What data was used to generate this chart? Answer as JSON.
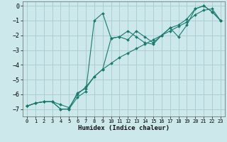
{
  "bg_color": "#cce8ea",
  "grid_color": "#aacfd2",
  "line_color": "#1a7a6e",
  "xlabel": "Humidex (Indice chaleur)",
  "xlim": [
    -0.5,
    23.5
  ],
  "ylim": [
    -7.5,
    0.3
  ],
  "xticks": [
    0,
    1,
    2,
    3,
    4,
    5,
    6,
    7,
    8,
    9,
    10,
    11,
    12,
    13,
    14,
    15,
    16,
    17,
    18,
    19,
    20,
    21,
    22,
    23
  ],
  "yticks": [
    0,
    -1,
    -2,
    -3,
    -4,
    -5,
    -6,
    -7
  ],
  "series": [
    {
      "x": [
        0,
        1,
        2,
        3,
        4,
        5,
        6,
        7,
        8,
        9,
        10,
        11,
        12,
        13,
        14,
        15,
        16,
        17,
        18,
        19,
        20,
        21,
        22,
        23
      ],
      "y": [
        -6.8,
        -6.6,
        -6.5,
        -6.5,
        -6.7,
        -6.9,
        -6.0,
        -5.5,
        -4.8,
        -4.3,
        -3.9,
        -3.5,
        -3.2,
        -2.9,
        -2.6,
        -2.3,
        -2.0,
        -1.7,
        -1.4,
        -1.1,
        -0.6,
        -0.3,
        -0.2,
        -1.0
      ]
    },
    {
      "x": [
        0,
        1,
        2,
        3,
        4,
        5,
        6,
        7,
        8,
        9,
        10,
        11,
        12,
        13,
        14,
        15,
        16,
        17,
        18,
        19,
        20,
        21,
        22,
        23
      ],
      "y": [
        -6.8,
        -6.6,
        -6.5,
        -6.5,
        -7.0,
        -7.0,
        -6.2,
        -5.8,
        -1.0,
        -0.5,
        -2.2,
        -2.1,
        -2.3,
        -1.7,
        -2.1,
        -2.5,
        -2.0,
        -1.5,
        -1.3,
        -0.9,
        -0.2,
        0.0,
        -0.4,
        -1.0
      ]
    },
    {
      "x": [
        0,
        1,
        2,
        3,
        4,
        5,
        6,
        7,
        8,
        9,
        10,
        11,
        12,
        13,
        14,
        15,
        16,
        17,
        18,
        19,
        20,
        21,
        22,
        23
      ],
      "y": [
        -6.8,
        -6.6,
        -6.5,
        -6.5,
        -7.0,
        -7.0,
        -5.9,
        -5.6,
        -4.8,
        -4.3,
        -2.2,
        -2.1,
        -1.7,
        -2.1,
        -2.5,
        -2.6,
        -2.0,
        -1.5,
        -2.1,
        -1.3,
        -0.2,
        0.0,
        -0.4,
        -1.0
      ]
    }
  ]
}
